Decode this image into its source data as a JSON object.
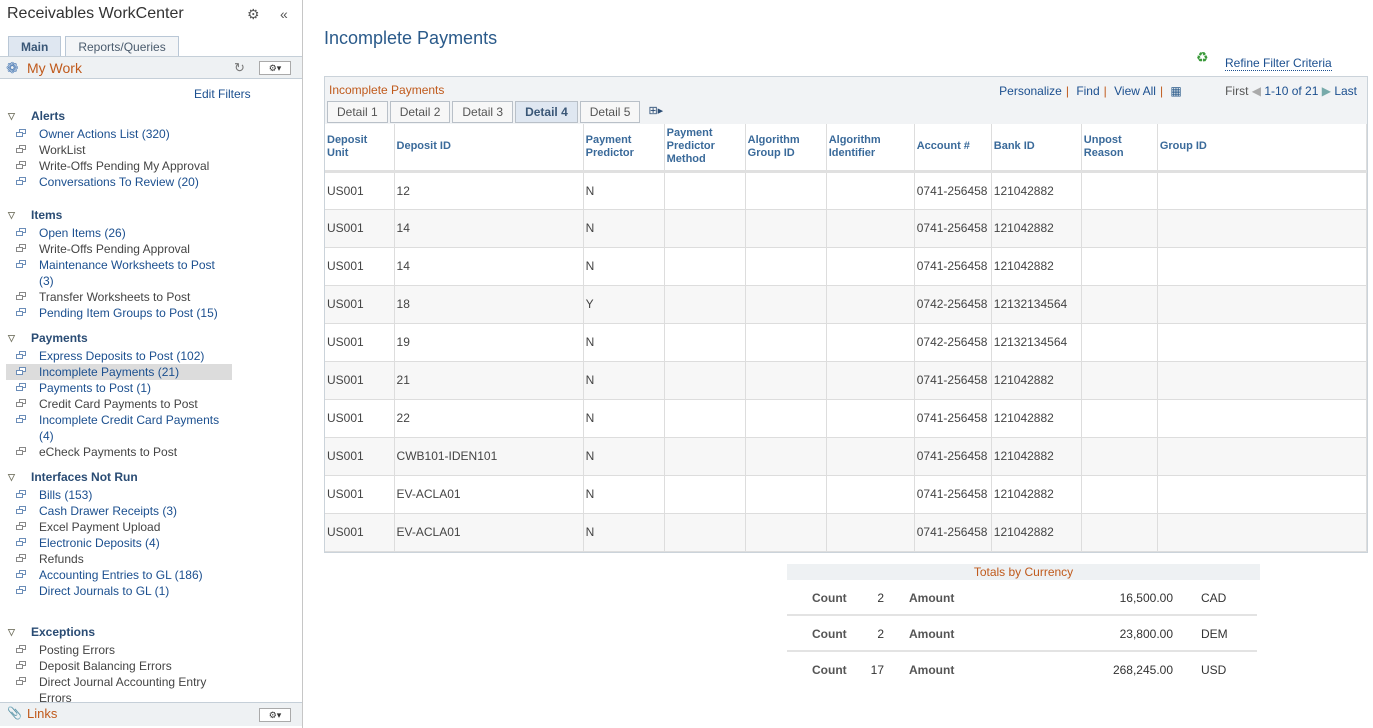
{
  "sidebar": {
    "title": "Receivables WorkCenter",
    "tabs": [
      "Main",
      "Reports/Queries"
    ],
    "mywork": "My Work",
    "edit_filters": "Edit Filters",
    "links": "Links",
    "sections": [
      {
        "label": "Alerts",
        "items": [
          {
            "label": "Owner Actions List (320)",
            "active": true
          },
          {
            "label": "WorkList",
            "active": false
          },
          {
            "label": "Write-Offs Pending My Approval",
            "active": false
          },
          {
            "label": "Conversations To Review (20)",
            "active": true
          }
        ]
      },
      {
        "label": "Items",
        "items": [
          {
            "label": "Open Items (26)",
            "active": true
          },
          {
            "label": "Write-Offs Pending Approval",
            "active": false
          },
          {
            "label": "Maintenance Worksheets to Post (3)",
            "active": true
          },
          {
            "label": "Transfer Worksheets to Post",
            "active": false
          },
          {
            "label": "Pending Item Groups to Post (15)",
            "active": true
          }
        ]
      },
      {
        "label": "Payments",
        "items": [
          {
            "label": "Express Deposits to Post (102)",
            "active": true
          },
          {
            "label": "Incomplete Payments (21)",
            "active": true,
            "selected": true
          },
          {
            "label": "Payments to Post (1)",
            "active": true
          },
          {
            "label": "Credit Card Payments to Post",
            "active": false
          },
          {
            "label": "Incomplete Credit Card Payments (4)",
            "active": true
          },
          {
            "label": "eCheck Payments to Post",
            "active": false
          }
        ]
      },
      {
        "label": "Interfaces Not Run",
        "items": [
          {
            "label": "Bills (153)",
            "active": true
          },
          {
            "label": "Cash Drawer Receipts (3)",
            "active": true
          },
          {
            "label": "Excel Payment Upload",
            "active": false
          },
          {
            "label": "Electronic Deposits (4)",
            "active": true
          },
          {
            "label": "Refunds",
            "active": false
          },
          {
            "label": "Accounting Entries to GL (186)",
            "active": true
          },
          {
            "label": "Direct Journals to GL (1)",
            "active": true
          }
        ]
      },
      {
        "label": "Exceptions",
        "items": [
          {
            "label": "Posting Errors",
            "active": false
          },
          {
            "label": "Deposit Balancing Errors",
            "active": false
          },
          {
            "label": "Direct Journal Accounting Entry Errors",
            "active": false
          }
        ]
      }
    ]
  },
  "main": {
    "title": "Incomplete Payments",
    "refine": "Refine Filter Criteria",
    "grid": {
      "title": "Incomplete Payments",
      "personalize": "Personalize",
      "find": "Find",
      "view_all": "View All",
      "first": "First",
      "range": "1-10 of 21",
      "last": "Last",
      "tabs": [
        "Detail 1",
        "Detail 2",
        "Detail 3",
        "Detail 4",
        "Detail 5"
      ],
      "active_tab": "Detail 4",
      "columns": [
        "Deposit Unit",
        "Deposit ID",
        "Payment Predictor",
        "Payment Predictor Method",
        "Algorithm Group ID",
        "Algorithm Identifier",
        "Account #",
        "Bank ID",
        "Unpost Reason",
        "Group ID"
      ],
      "rows": [
        [
          "US001",
          "12",
          "N",
          "",
          "",
          "",
          "0741-256458",
          "121042882",
          "",
          ""
        ],
        [
          "US001",
          "14",
          "N",
          "",
          "",
          "",
          "0741-256458",
          "121042882",
          "",
          ""
        ],
        [
          "US001",
          "14",
          "N",
          "",
          "",
          "",
          "0741-256458",
          "121042882",
          "",
          ""
        ],
        [
          "US001",
          "18",
          "Y",
          "",
          "",
          "",
          "0742-256458",
          "12132134564",
          "",
          ""
        ],
        [
          "US001",
          "19",
          "N",
          "",
          "",
          "",
          "0742-256458",
          "12132134564",
          "",
          ""
        ],
        [
          "US001",
          "21",
          "N",
          "",
          "",
          "",
          "0741-256458",
          "121042882",
          "",
          ""
        ],
        [
          "US001",
          "22",
          "N",
          "",
          "",
          "",
          "0741-256458",
          "121042882",
          "",
          ""
        ],
        [
          "US001",
          "CWB101-IDEN101",
          "N",
          "",
          "",
          "",
          "0741-256458",
          "121042882",
          "",
          ""
        ],
        [
          "US001",
          "EV-ACLA01",
          "N",
          "",
          "",
          "",
          "0741-256458",
          "121042882",
          "",
          ""
        ],
        [
          "US001",
          "EV-ACLA01",
          "N",
          "",
          "",
          "",
          "0741-256458",
          "121042882",
          "",
          ""
        ]
      ]
    },
    "totals": {
      "title": "Totals by Currency",
      "count_label": "Count",
      "amount_label": "Amount",
      "rows": [
        {
          "count": "2",
          "amount": "16,500.00",
          "currency": "CAD"
        },
        {
          "count": "2",
          "amount": "23,800.00",
          "currency": "DEM"
        },
        {
          "count": "17",
          "amount": "268,245.00",
          "currency": "USD"
        }
      ]
    }
  }
}
